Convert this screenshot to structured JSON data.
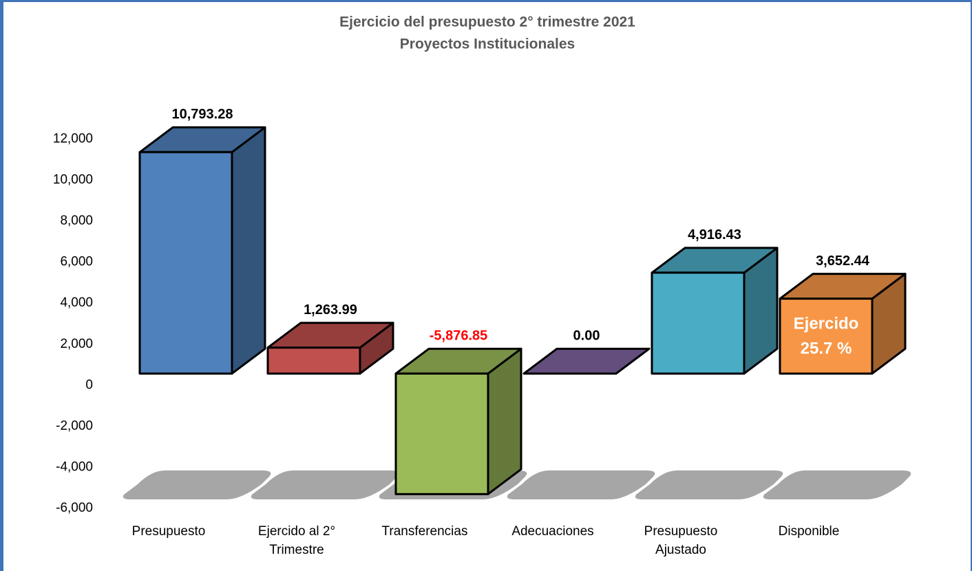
{
  "chart_data": {
    "type": "bar3d",
    "title": "Ejercicio del presupuesto 2° trimestre 2021",
    "subtitle": "Proyectos Institucionales",
    "categories": [
      "Presupuesto",
      "Ejercido al 2° Trimestre",
      "Transferencias",
      "Adecuaciones",
      "Presupuesto Ajustado",
      "Disponible"
    ],
    "values": [
      10793.28,
      1263.99,
      -5876.85,
      0,
      4916.43,
      3652.44
    ],
    "value_labels": [
      "10,793.28",
      "1,263.99",
      "-5,876.85",
      "0.00",
      "4,916.43",
      "3,652.44"
    ],
    "colors": [
      "#4f81bd",
      "#c0504d",
      "#9bbb59",
      "#8064a2",
      "#4bacc6",
      "#f79646"
    ],
    "negative_label_color": "#ff0000",
    "ylim": [
      -6000,
      12000
    ],
    "yticks": [
      {
        "value": -6000,
        "label": "-6,000"
      },
      {
        "value": -4000,
        "label": "-4,000"
      },
      {
        "value": -2000,
        "label": "-2,000"
      },
      0,
      {
        "value": 2000,
        "label": "2,000"
      },
      {
        "value": 4000,
        "label": "4,000"
      },
      {
        "value": 6000,
        "label": "6,000"
      },
      {
        "value": 8000,
        "label": "8,000"
      },
      {
        "value": 10000,
        "label": "10,000"
      },
      {
        "value": 12000,
        "label": "12,000"
      }
    ],
    "annotation": [
      "Ejercido",
      "25.7 %"
    ]
  }
}
